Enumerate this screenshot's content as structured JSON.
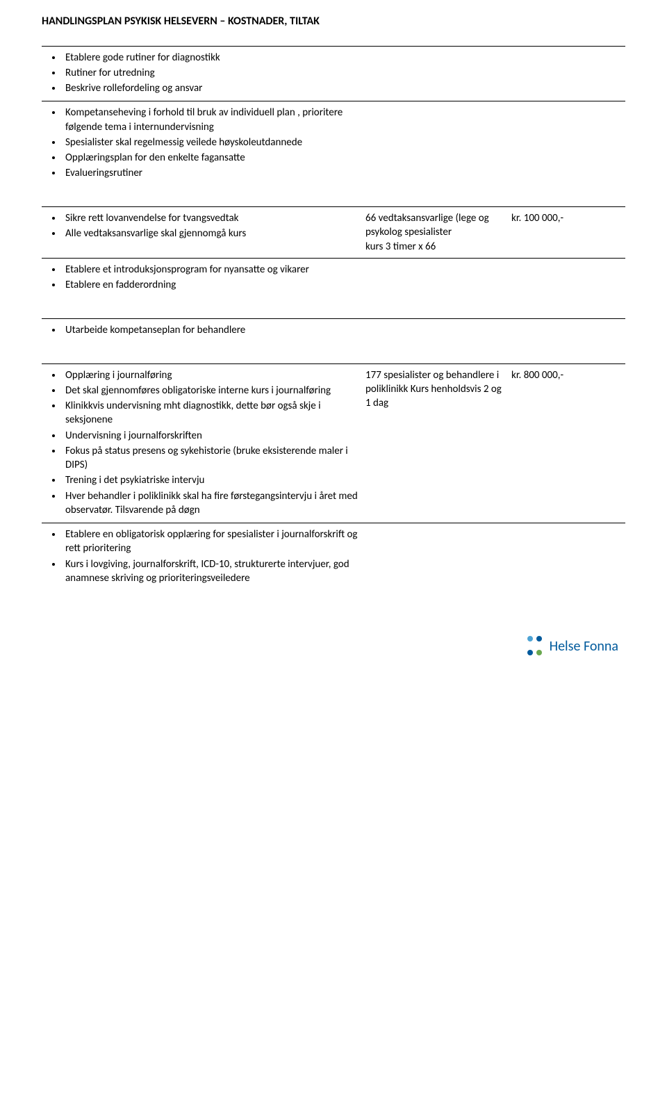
{
  "title": "HANDLINGSPLAN PSYKISK HELSEVERN – KOSTNADER, TILTAK",
  "sections": [
    {
      "bullets": [
        "Etablere gode rutiner for diagnostikk",
        "Rutiner for utredning",
        "Beskrive rollefordeling og ansvar"
      ],
      "mid": "",
      "cost": ""
    },
    {
      "bullets": [
        "Kompetanseheving i forhold til bruk av individuell plan , prioritere følgende tema i internundervisning",
        "Spesialister skal regelmessig veilede høyskoleutdannede",
        "Opplæringsplan for den enkelte fagansatte",
        "Evalueringsrutiner"
      ],
      "mid": "",
      "cost": ""
    },
    {
      "bullets": [
        "Sikre rett lovanvendelse for tvangsvedtak",
        "Alle vedtaksansvarlige skal gjennomgå kurs"
      ],
      "mid": "66 vedtaksansvarlige (lege og psykolog spesialister\nkurs 3 timer x 66",
      "cost": "kr. 100 000,-"
    },
    {
      "bullets": [
        "Etablere et introduksjonsprogram for nyansatte og vikarer",
        "Etablere en fadderordning"
      ],
      "mid": "",
      "cost": ""
    },
    {
      "bullets": [
        "Utarbeide kompetanseplan for behandlere"
      ],
      "mid": "",
      "cost": ""
    },
    {
      "bullets": [
        "Opplæring i journalføring",
        "Det skal gjennomføres obligatoriske interne kurs i journalføring",
        "Klinikkvis undervisning mht diagnostikk, dette bør også skje i seksjonene",
        "Undervisning i journalforskriften",
        "Fokus på status presens og sykehistorie (bruke eksisterende maler i DIPS)",
        "Trening i det psykiatriske intervju",
        "Hver behandler i poliklinikk skal ha fire førstegangsintervju i året med observatør. Tilsvarende på døgn"
      ],
      "mid": "177 spesialister og behandlere i poliklinikk Kurs  henholdsvis 2 og 1 dag",
      "cost": "kr. 800 000,-"
    },
    {
      "bullets": [
        "Etablere en obligatorisk opplæring for spesialister i journalforskrift og rett prioritering",
        "Kurs i lovgiving, journalforskrift, ICD-10, strukturerte intervjuer, god anamnese skriving og prioriteringsveiledere"
      ],
      "mid": "",
      "cost": ""
    }
  ],
  "logo": {
    "text": "Helse Fonna",
    "colors": {
      "blue_dark": "#005a9c",
      "blue_light": "#4da3d4",
      "green": "#6aa84f"
    }
  }
}
